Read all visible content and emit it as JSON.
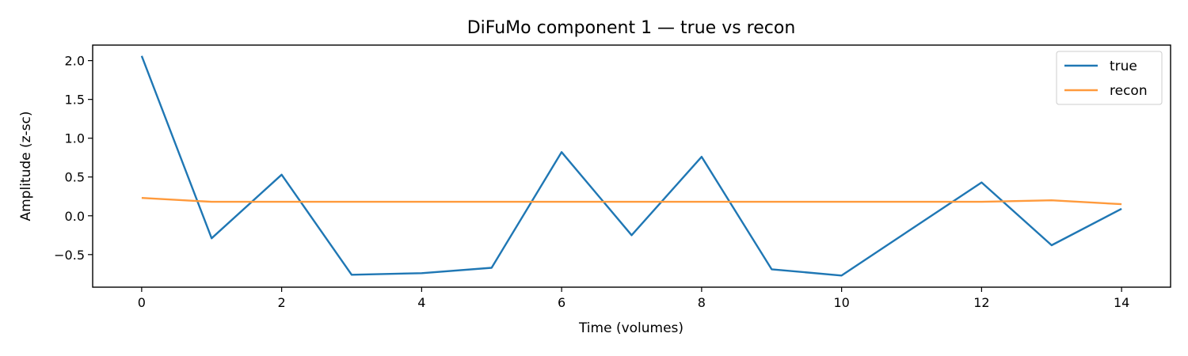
{
  "chart_data": {
    "type": "line",
    "title": "DiFuMo component 1 — true vs recon",
    "xlabel": "Time (volumes)",
    "ylabel": "Amplitude (z-sc)",
    "xlim": [
      -0.7,
      14.7
    ],
    "ylim": [
      -0.92,
      2.2
    ],
    "xticks": [
      0,
      2,
      4,
      6,
      8,
      10,
      12,
      14
    ],
    "xtick_labels": [
      "0",
      "2",
      "4",
      "6",
      "8",
      "10",
      "12",
      "14"
    ],
    "yticks": [
      -0.5,
      0.0,
      0.5,
      1.0,
      1.5,
      2.0
    ],
    "ytick_labels": [
      "−0.5",
      "0.0",
      "0.5",
      "1.0",
      "1.5",
      "2.0"
    ],
    "grid": false,
    "legend_position": "top-right",
    "x": [
      0,
      1,
      2,
      3,
      4,
      5,
      6,
      7,
      8,
      9,
      10,
      11,
      12,
      13,
      14
    ],
    "series": [
      {
        "name": "true",
        "color": "#1f77b4",
        "values": [
          2.06,
          -0.29,
          0.53,
          -0.76,
          -0.74,
          -0.67,
          0.82,
          -0.25,
          0.76,
          -0.69,
          -0.77,
          -0.17,
          0.43,
          -0.38,
          0.09
        ]
      },
      {
        "name": "recon",
        "color": "#ff9a3c",
        "values": [
          0.23,
          0.18,
          0.18,
          0.18,
          0.18,
          0.18,
          0.18,
          0.18,
          0.18,
          0.18,
          0.18,
          0.18,
          0.18,
          0.2,
          0.15
        ]
      }
    ]
  }
}
